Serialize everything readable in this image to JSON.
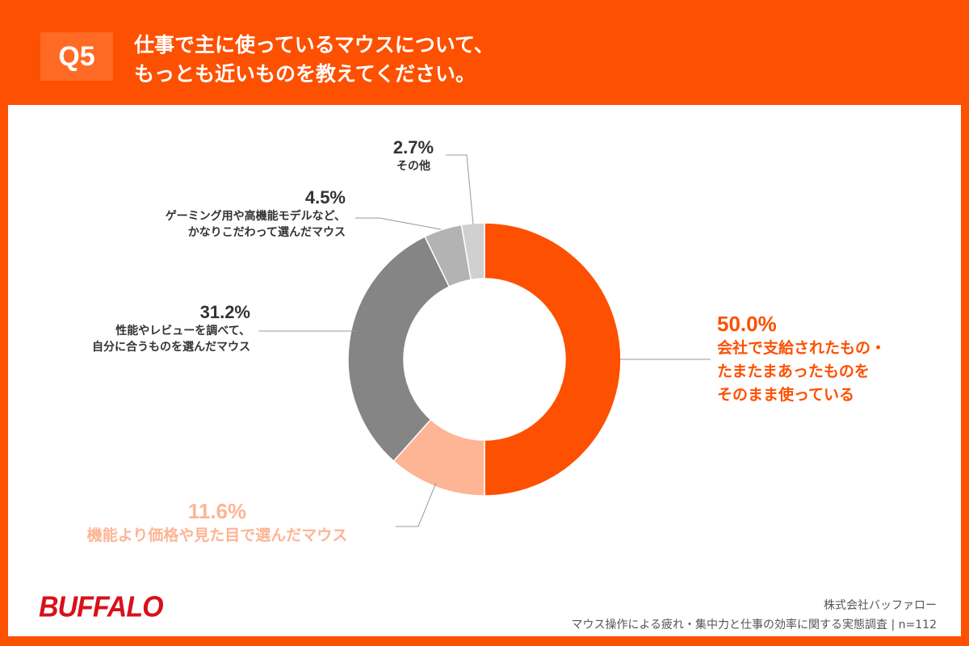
{
  "header": {
    "badge": "Q5",
    "title_line1": "仕事で主に使っているマウスについて、",
    "title_line2": "もっとも近いものを教えてください。"
  },
  "chart_data": {
    "type": "pie",
    "donut": true,
    "start": "top, clockwise",
    "slices": [
      {
        "pct_label": "50.0%",
        "value": 50.0,
        "label_lines": [
          "会社で支給されたもの・",
          "たまたまあったものを",
          "そのまま使っている"
        ],
        "color": "#fd5000"
      },
      {
        "pct_label": "11.6%",
        "value": 11.6,
        "label_lines": [
          "機能より価格や見た目で選んだマウス"
        ],
        "color": "#fdb595"
      },
      {
        "pct_label": "31.2%",
        "value": 31.2,
        "label_lines": [
          "性能やレビューを調べて、",
          "自分に合うものを選んだマウス"
        ],
        "color": "#858585"
      },
      {
        "pct_label": "4.5%",
        "value": 4.5,
        "label_lines": [
          "ゲーミング用や高機能モデルなど、",
          "かなりこだわって選んだマウス"
        ],
        "color": "#b3b3b3"
      },
      {
        "pct_label": "2.7%",
        "value": 2.7,
        "label_lines": [
          "その他"
        ],
        "color": "#d0d0d0"
      }
    ]
  },
  "footer": {
    "logo": "BUFFALO",
    "company": "株式会社バッファロー",
    "survey": "マウス操作による疲れ・集中力と仕事の効率に関する実態調査 | n=112"
  }
}
